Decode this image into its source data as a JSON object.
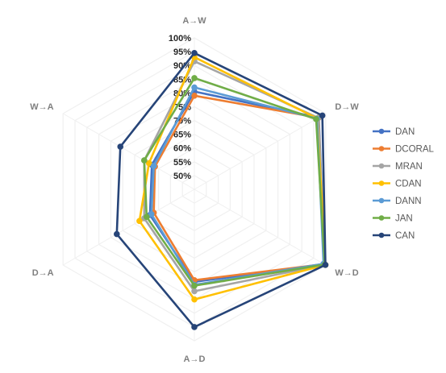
{
  "chart_data": {
    "type": "radar",
    "title": "",
    "categories": [
      "A→W",
      "D→W",
      "W→D",
      "A→D",
      "D→A",
      "W→A"
    ],
    "r_ticks": [
      "50%",
      "55%",
      "60%",
      "65%",
      "70%",
      "75%",
      "80%",
      "85%",
      "90%",
      "95%",
      "100%"
    ],
    "r_range": [
      45,
      100
    ],
    "grid": true,
    "legend": "right",
    "series": [
      {
        "name": "DAN",
        "color": "#4472c4",
        "values": [
          80.5,
          97.1,
          99.6,
          78.6,
          63.6,
          62.8
        ]
      },
      {
        "name": "DCORAL",
        "color": "#ed7d31",
        "values": [
          79.0,
          97.0,
          99.3,
          78.0,
          62.0,
          61.5
        ]
      },
      {
        "name": "MRAN",
        "color": "#a5a5a5",
        "values": [
          91.5,
          96.9,
          99.8,
          82.0,
          66.0,
          66.0
        ]
      },
      {
        "name": "CDAN",
        "color": "#ffc000",
        "values": [
          93.0,
          96.5,
          99.9,
          85.0,
          68.0,
          64.0
        ]
      },
      {
        "name": "DANN",
        "color": "#5b9bd5",
        "values": [
          82.0,
          96.4,
          99.1,
          79.7,
          63.0,
          62.0
        ]
      },
      {
        "name": "JAN",
        "color": "#70ad47",
        "values": [
          85.4,
          96.0,
          99.6,
          80.0,
          65.0,
          66.0
        ]
      },
      {
        "name": "CAN",
        "color": "#264478",
        "values": [
          94.5,
          98.6,
          99.9,
          95.0,
          77.5,
          76.0
        ]
      }
    ]
  }
}
